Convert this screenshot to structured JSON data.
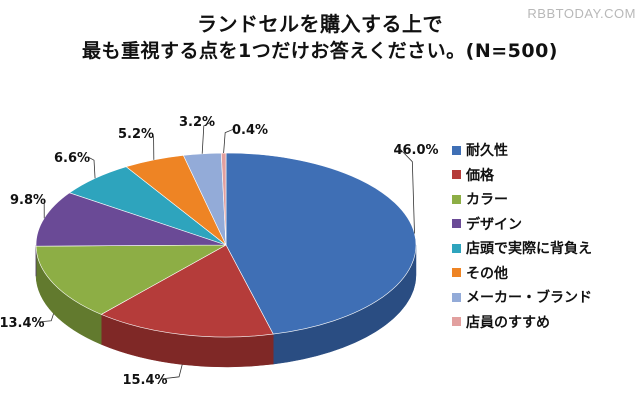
{
  "watermark": "RBBTODAY.COM",
  "chart_data": {
    "type": "pie",
    "title_lines": [
      "ランドセルを購入する上で",
      "最も重視する点を1つだけお答えください。(N=500)"
    ],
    "legend_position": "right",
    "slices": [
      {
        "label": "耐久性",
        "value": 46.0,
        "value_label": "46.0%",
        "color": "#3f6fb5",
        "side": "#2a4d82"
      },
      {
        "label": "価格",
        "value": 15.4,
        "value_label": "15.4%",
        "color": "#b53c3a",
        "side": "#7f2826"
      },
      {
        "label": "カラー",
        "value": 13.4,
        "value_label": "13.4%",
        "color": "#8dae45",
        "side": "#627a2e"
      },
      {
        "label": "デザイン",
        "value": 9.8,
        "value_label": "9.8%",
        "color": "#6a4a96",
        "side": "#4a3369"
      },
      {
        "label": "店頭で実際に背負え",
        "value": 6.6,
        "value_label": "6.6%",
        "color": "#2ea4bd",
        "side": "#1f7283"
      },
      {
        "label": "その他",
        "value": 5.2,
        "value_label": "5.2%",
        "color": "#ee8424",
        "side": "#a85c18"
      },
      {
        "label": "メーカー・ブランド",
        "value": 3.2,
        "value_label": "3.2%",
        "color": "#93abd8",
        "side": "#6a7fa6"
      },
      {
        "label": "店員のすすめ",
        "value": 0.4,
        "value_label": "0.4%",
        "color": "#e2a09f",
        "side": "#a97574"
      }
    ]
  }
}
